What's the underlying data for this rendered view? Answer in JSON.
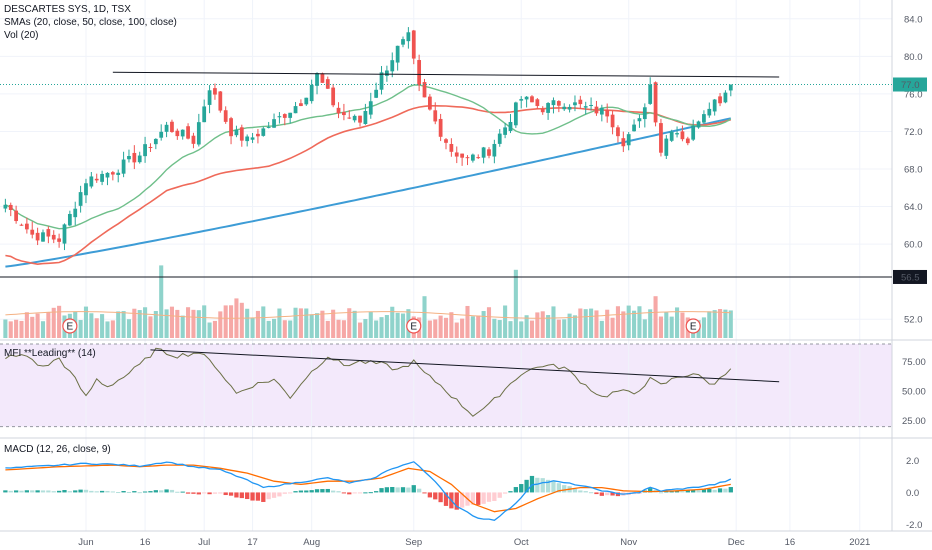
{
  "chart_data": {
    "type": "candlestick",
    "title": "DESCARTES SYS, 1D, TSX",
    "panels": {
      "price": {
        "legend": [
          "DESCARTES SYS, 1D, TSX",
          "SMAs (20, close, 50, close, 100, close)",
          "Vol (20)"
        ],
        "ylim": [
          50,
          86
        ],
        "y_ticks": [
          "84.0",
          "80.0",
          "76.0",
          "72.0",
          "68.0",
          "64.0",
          "60.0",
          "56.5",
          "52.0"
        ],
        "last_price": "77.0",
        "last_price_value": 77.0,
        "level_line": 56.5,
        "level_label": "56.5",
        "resistance_line": {
          "x_start": 20,
          "y_start": 78.3,
          "x_end": 144,
          "y_end": 77.8
        },
        "sma_colors": {
          "sma20": "#6fbf8a",
          "sma50": "#ef6a5a",
          "sma100": "#3d9cd6"
        },
        "bull_color": "#26a69a",
        "bear_color": "#ef5350",
        "earnings_marker": "E",
        "earnings_indices": [
          12,
          76,
          128
        ]
      },
      "mfi": {
        "label": "MFI **Leading** (14)",
        "ylim": [
          12,
          90
        ],
        "y_ticks": [
          "75.00",
          "50.00",
          "25.00"
        ],
        "band_upper": 90,
        "band_lower": 20,
        "trend_line": {
          "x_start": 27,
          "y_start": 85,
          "x_end": 144,
          "y_end": 58
        }
      },
      "macd": {
        "label": "MACD (12, 26, close, 9)",
        "ylim": [
          -2.4,
          3.2
        ],
        "y_ticks": [
          "2.0",
          "0.0",
          "-2.0"
        ],
        "macd_color": "#2196f3",
        "signal_color": "#ff6d00"
      }
    },
    "x_tick_labels": [
      {
        "label": "Jun",
        "index": 15
      },
      {
        "label": "16",
        "index": 26
      },
      {
        "label": "Jul",
        "index": 37
      },
      {
        "label": "17",
        "index": 46
      },
      {
        "label": "Aug",
        "index": 57
      },
      {
        "label": "Sep",
        "index": 76
      },
      {
        "label": "Oct",
        "index": 96
      },
      {
        "label": "Nov",
        "index": 116
      },
      {
        "label": "Dec",
        "index": 136
      },
      {
        "label": "16",
        "index": 146
      },
      {
        "label": "2021",
        "index": 159
      }
    ],
    "close_anchors": [
      [
        0,
        64.2
      ],
      [
        5,
        61.0
      ],
      [
        10,
        60.5
      ],
      [
        15,
        66.8
      ],
      [
        20,
        67.8
      ],
      [
        25,
        69.5
      ],
      [
        30,
        72.5
      ],
      [
        35,
        71.0
      ],
      [
        38,
        76.8
      ],
      [
        42,
        72.0
      ],
      [
        45,
        71.0
      ],
      [
        50,
        73.0
      ],
      [
        55,
        75.2
      ],
      [
        58,
        78.0
      ],
      [
        62,
        74.0
      ],
      [
        66,
        73.0
      ],
      [
        70,
        78.0
      ],
      [
        73,
        80.8
      ],
      [
        75,
        82.0
      ],
      [
        77,
        76.5
      ],
      [
        80,
        73.0
      ],
      [
        83,
        70.0
      ],
      [
        86,
        69.0
      ],
      [
        90,
        70.0
      ],
      [
        93,
        72.5
      ],
      [
        96,
        75.5
      ],
      [
        100,
        74.5
      ],
      [
        104,
        75.2
      ],
      [
        108,
        74.5
      ],
      [
        112,
        74.0
      ],
      [
        115,
        71.0
      ],
      [
        118,
        73.0
      ],
      [
        120,
        77.0
      ],
      [
        122,
        70.0
      ],
      [
        124,
        72.5
      ],
      [
        127,
        71.0
      ],
      [
        129,
        73.5
      ],
      [
        131,
        75.0
      ],
      [
        133,
        75.5
      ],
      [
        135,
        77.0
      ]
    ],
    "volume_spikes": [
      {
        "index": 29,
        "value": 3.3,
        "up": true
      },
      {
        "index": 95,
        "value": 3.1,
        "up": true
      },
      {
        "index": 78,
        "value": 1.9,
        "up": true
      },
      {
        "index": 121,
        "value": 1.9,
        "up": false
      },
      {
        "index": 43,
        "value": 1.8,
        "up": false
      },
      {
        "index": 44,
        "value": 1.6,
        "up": false
      }
    ],
    "mfi_anchors": [
      [
        0,
        79
      ],
      [
        4,
        80
      ],
      [
        7,
        70
      ],
      [
        10,
        78
      ],
      [
        13,
        60
      ],
      [
        15,
        45
      ],
      [
        17,
        60
      ],
      [
        19,
        54
      ],
      [
        22,
        62
      ],
      [
        25,
        72
      ],
      [
        28,
        85
      ],
      [
        32,
        80
      ],
      [
        36,
        83
      ],
      [
        39,
        72
      ],
      [
        43,
        48
      ],
      [
        46,
        55
      ],
      [
        50,
        60
      ],
      [
        53,
        45
      ],
      [
        56,
        62
      ],
      [
        60,
        80
      ],
      [
        63,
        72
      ],
      [
        66,
        75
      ],
      [
        70,
        73
      ],
      [
        73,
        68
      ],
      [
        76,
        75
      ],
      [
        78,
        65
      ],
      [
        81,
        55
      ],
      [
        84,
        42
      ],
      [
        87,
        30
      ],
      [
        90,
        38
      ],
      [
        93,
        52
      ],
      [
        96,
        65
      ],
      [
        100,
        72
      ],
      [
        104,
        70
      ],
      [
        108,
        55
      ],
      [
        111,
        45
      ],
      [
        114,
        50
      ],
      [
        117,
        48
      ],
      [
        120,
        60
      ],
      [
        122,
        55
      ],
      [
        125,
        62
      ],
      [
        128,
        65
      ],
      [
        130,
        60
      ],
      [
        132,
        55
      ],
      [
        133,
        62
      ],
      [
        135,
        70
      ]
    ],
    "macd_anchors": [
      [
        0,
        1.5
      ],
      [
        5,
        1.6
      ],
      [
        10,
        1.7
      ],
      [
        15,
        1.8
      ],
      [
        20,
        1.75
      ],
      [
        25,
        1.65
      ],
      [
        30,
        1.9
      ],
      [
        35,
        1.6
      ],
      [
        40,
        1.4
      ],
      [
        44,
        0.9
      ],
      [
        48,
        0.3
      ],
      [
        52,
        0.5
      ],
      [
        56,
        0.7
      ],
      [
        60,
        0.9
      ],
      [
        64,
        0.6
      ],
      [
        68,
        0.8
      ],
      [
        72,
        1.5
      ],
      [
        76,
        1.9
      ],
      [
        80,
        0.7
      ],
      [
        84,
        -0.9
      ],
      [
        88,
        -1.6
      ],
      [
        91,
        -1.7
      ],
      [
        95,
        -0.7
      ],
      [
        98,
        0.5
      ],
      [
        102,
        0.7
      ],
      [
        106,
        0.5
      ],
      [
        110,
        0.2
      ],
      [
        114,
        -0.1
      ],
      [
        118,
        0.0
      ],
      [
        120,
        0.3
      ],
      [
        122,
        0.1
      ],
      [
        125,
        0.2
      ],
      [
        128,
        0.3
      ],
      [
        132,
        0.5
      ],
      [
        135,
        0.8
      ]
    ],
    "signal_anchors": [
      [
        0,
        1.4
      ],
      [
        10,
        1.6
      ],
      [
        20,
        1.7
      ],
      [
        25,
        1.6
      ],
      [
        30,
        1.7
      ],
      [
        35,
        1.7
      ],
      [
        40,
        1.5
      ],
      [
        45,
        1.2
      ],
      [
        50,
        0.7
      ],
      [
        55,
        0.5
      ],
      [
        60,
        0.7
      ],
      [
        65,
        0.7
      ],
      [
        70,
        0.9
      ],
      [
        75,
        1.5
      ],
      [
        79,
        1.3
      ],
      [
        83,
        0.5
      ],
      [
        87,
        -0.7
      ],
      [
        91,
        -1.2
      ],
      [
        95,
        -1.0
      ],
      [
        99,
        -0.4
      ],
      [
        103,
        0.1
      ],
      [
        107,
        0.3
      ],
      [
        111,
        0.3
      ],
      [
        115,
        0.1
      ],
      [
        120,
        0.05
      ],
      [
        125,
        0.1
      ],
      [
        130,
        0.2
      ],
      [
        135,
        0.5
      ]
    ],
    "sma_end_values": {
      "sma20": 73.8,
      "sma50": 73.5,
      "sma100": 73.4
    },
    "n_bars": 136,
    "x_domain": [
      -1,
      165
    ]
  }
}
